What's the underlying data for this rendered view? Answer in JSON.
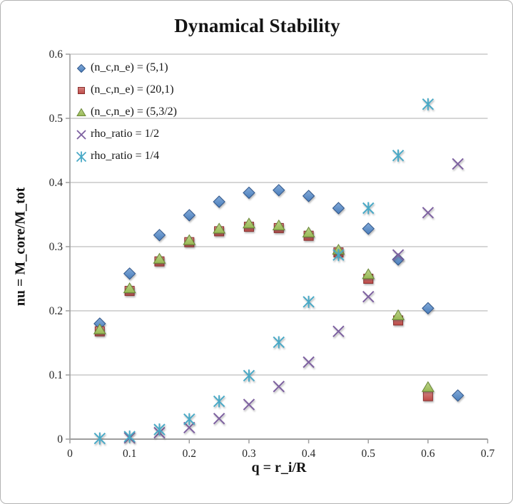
{
  "chart_data": {
    "type": "scatter",
    "title": "Dynamical Stability",
    "xlabel": "q = r_i/R",
    "ylabel": "nu = M_core/M_tot",
    "xlim": [
      0,
      0.7
    ],
    "ylim": [
      0,
      0.6
    ],
    "xticks": [
      0,
      0.1,
      0.2,
      0.3,
      0.4,
      0.5,
      0.6,
      0.7
    ],
    "xtick_labels": [
      "0",
      "0.1",
      "0.2",
      "0.3",
      "0.4",
      "0.5",
      "0.6",
      "0.7"
    ],
    "yticks": [
      0,
      0.1,
      0.2,
      0.3,
      0.4,
      0.5,
      0.6
    ],
    "ytick_labels": [
      "0",
      "0.1",
      "0.2",
      "0.3",
      "0.4",
      "0.5",
      "0.6"
    ],
    "grid": "horizontal",
    "grid_color": "#c9c9c9",
    "axis_color": "#9e9e9e",
    "legend_position": "top-left-inside",
    "series": [
      {
        "id": "nc-ne-5-1",
        "name": "(n_c,n_e) = (5,1)",
        "marker": "diamond",
        "color": "#4a7ebb",
        "fill_light": "#82aad9",
        "stroke": "#31578a",
        "points": [
          [
            0.05,
            0.18
          ],
          [
            0.1,
            0.258
          ],
          [
            0.15,
            0.318
          ],
          [
            0.2,
            0.349
          ],
          [
            0.25,
            0.37
          ],
          [
            0.3,
            0.384
          ],
          [
            0.35,
            0.388
          ],
          [
            0.4,
            0.379
          ],
          [
            0.45,
            0.36
          ],
          [
            0.5,
            0.328
          ],
          [
            0.55,
            0.28
          ],
          [
            0.6,
            0.204
          ],
          [
            0.65,
            0.068
          ]
        ]
      },
      {
        "id": "nc-ne-20-1",
        "name": "(n_c,n_e) = (20,1)",
        "marker": "square",
        "color": "#be4b48",
        "fill_light": "#d58380",
        "stroke": "#8a2f2d",
        "points": [
          [
            0.05,
            0.168
          ],
          [
            0.1,
            0.231
          ],
          [
            0.15,
            0.277
          ],
          [
            0.2,
            0.307
          ],
          [
            0.25,
            0.324
          ],
          [
            0.3,
            0.331
          ],
          [
            0.35,
            0.329
          ],
          [
            0.4,
            0.317
          ],
          [
            0.45,
            0.291
          ],
          [
            0.5,
            0.25
          ],
          [
            0.55,
            0.185
          ],
          [
            0.6,
            0.067
          ]
        ]
      },
      {
        "id": "nc-ne-5-3-2",
        "name": "(n_c,n_e) = (5,3/2)",
        "marker": "triangle",
        "color": "#98b954",
        "fill_light": "#bdd38b",
        "stroke": "#6b8838",
        "points": [
          [
            0.05,
            0.171
          ],
          [
            0.1,
            0.235
          ],
          [
            0.15,
            0.281
          ],
          [
            0.2,
            0.31
          ],
          [
            0.25,
            0.328
          ],
          [
            0.3,
            0.336
          ],
          [
            0.35,
            0.333
          ],
          [
            0.4,
            0.322
          ],
          [
            0.45,
            0.295
          ],
          [
            0.5,
            0.257
          ],
          [
            0.55,
            0.193
          ],
          [
            0.6,
            0.081
          ]
        ]
      },
      {
        "id": "rho-ratio-1-2",
        "name": "rho_ratio = 1/2",
        "marker": "x",
        "color": "#7d60a0",
        "points": [
          [
            0.1,
            0.002
          ],
          [
            0.15,
            0.01
          ],
          [
            0.2,
            0.018
          ],
          [
            0.25,
            0.032
          ],
          [
            0.3,
            0.054
          ],
          [
            0.35,
            0.082
          ],
          [
            0.4,
            0.12
          ],
          [
            0.45,
            0.168
          ],
          [
            0.5,
            0.222
          ],
          [
            0.55,
            0.287
          ],
          [
            0.6,
            0.353
          ],
          [
            0.65,
            0.429
          ]
        ]
      },
      {
        "id": "rho-ratio-1-4",
        "name": "rho_ratio = 1/4",
        "marker": "asterisk",
        "color": "#49a9c6",
        "points": [
          [
            0.05,
            0.001
          ],
          [
            0.1,
            0.004
          ],
          [
            0.15,
            0.015
          ],
          [
            0.2,
            0.031
          ],
          [
            0.25,
            0.059
          ],
          [
            0.3,
            0.099
          ],
          [
            0.35,
            0.151
          ],
          [
            0.4,
            0.214
          ],
          [
            0.45,
            0.287
          ],
          [
            0.5,
            0.36
          ],
          [
            0.55,
            0.442
          ],
          [
            0.6,
            0.522
          ]
        ]
      }
    ]
  }
}
